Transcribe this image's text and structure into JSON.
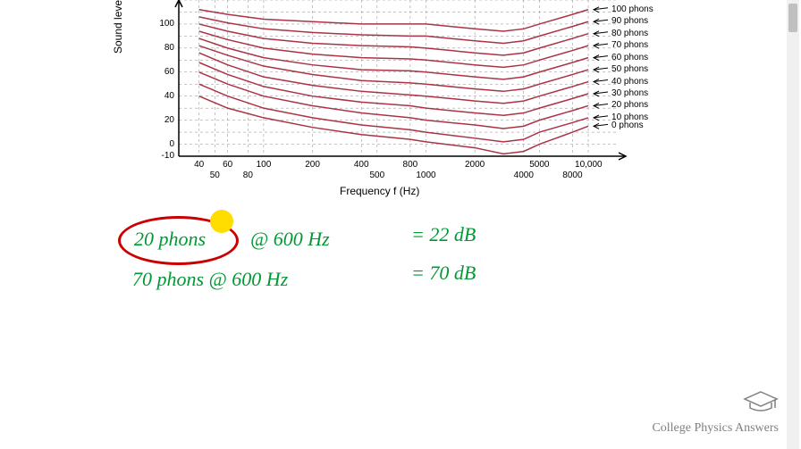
{
  "chart": {
    "type": "line",
    "ylabel": "Sound level (dB)",
    "xlabel": "Frequency f (Hz)",
    "y_ticks": [
      -10,
      0,
      20,
      40,
      60,
      80,
      100
    ],
    "y_range": [
      -10,
      120
    ],
    "x_ticks_top": [
      "40",
      "60",
      "100",
      "200",
      "400",
      "800",
      "2000",
      "5000",
      "10,000"
    ],
    "x_ticks_bottom": [
      "50",
      "80",
      "500",
      "1000",
      "4000",
      "8000"
    ],
    "x_range_log": [
      30,
      15000
    ],
    "curve_color": "#aa3344",
    "grid_color": "#888888",
    "axis_color": "#000000",
    "background_color": "#ffffff",
    "phon_labels": [
      {
        "text": "100 phons",
        "y_val": 100
      },
      {
        "text": "90 phons",
        "y_val": 90
      },
      {
        "text": "80 phons",
        "y_val": 80
      },
      {
        "text": "70 phons",
        "y_val": 70
      },
      {
        "text": "60 phons",
        "y_val": 60
      },
      {
        "text": "50 phons",
        "y_val": 50
      },
      {
        "text": "40 phons",
        "y_val": 40
      },
      {
        "text": "30 phons",
        "y_val": 30
      },
      {
        "text": "20 phons",
        "y_val": 20
      },
      {
        "text": "10 phons",
        "y_val": 10
      },
      {
        "text": "0 phons",
        "y_val": 0
      }
    ],
    "curves": [
      {
        "phon": 0,
        "points": [
          [
            40,
            40
          ],
          [
            60,
            30
          ],
          [
            100,
            22
          ],
          [
            200,
            14
          ],
          [
            400,
            8
          ],
          [
            800,
            4
          ],
          [
            1000,
            2
          ],
          [
            2000,
            -3
          ],
          [
            3000,
            -8
          ],
          [
            4000,
            -6
          ],
          [
            5000,
            0
          ],
          [
            8000,
            10
          ],
          [
            10000,
            15
          ]
        ]
      },
      {
        "phon": 10,
        "points": [
          [
            40,
            50
          ],
          [
            60,
            40
          ],
          [
            100,
            30
          ],
          [
            200,
            22
          ],
          [
            400,
            16
          ],
          [
            800,
            12
          ],
          [
            1000,
            10
          ],
          [
            2000,
            5
          ],
          [
            3000,
            2
          ],
          [
            4000,
            4
          ],
          [
            5000,
            10
          ],
          [
            8000,
            18
          ],
          [
            10000,
            22
          ]
        ]
      },
      {
        "phon": 20,
        "points": [
          [
            40,
            60
          ],
          [
            60,
            50
          ],
          [
            100,
            40
          ],
          [
            200,
            32
          ],
          [
            400,
            26
          ],
          [
            800,
            22
          ],
          [
            1000,
            20
          ],
          [
            2000,
            16
          ],
          [
            3000,
            13
          ],
          [
            4000,
            15
          ],
          [
            5000,
            20
          ],
          [
            8000,
            28
          ],
          [
            10000,
            32
          ]
        ]
      },
      {
        "phon": 30,
        "points": [
          [
            40,
            68
          ],
          [
            60,
            58
          ],
          [
            100,
            48
          ],
          [
            200,
            40
          ],
          [
            400,
            35
          ],
          [
            800,
            32
          ],
          [
            1000,
            30
          ],
          [
            2000,
            26
          ],
          [
            3000,
            24
          ],
          [
            4000,
            26
          ],
          [
            5000,
            30
          ],
          [
            8000,
            38
          ],
          [
            10000,
            42
          ]
        ]
      },
      {
        "phon": 40,
        "points": [
          [
            40,
            76
          ],
          [
            60,
            66
          ],
          [
            100,
            56
          ],
          [
            200,
            49
          ],
          [
            400,
            44
          ],
          [
            800,
            41
          ],
          [
            1000,
            40
          ],
          [
            2000,
            36
          ],
          [
            3000,
            34
          ],
          [
            4000,
            36
          ],
          [
            5000,
            40
          ],
          [
            8000,
            48
          ],
          [
            10000,
            52
          ]
        ]
      },
      {
        "phon": 50,
        "points": [
          [
            40,
            82
          ],
          [
            60,
            74
          ],
          [
            100,
            65
          ],
          [
            200,
            58
          ],
          [
            400,
            53
          ],
          [
            800,
            51
          ],
          [
            1000,
            50
          ],
          [
            2000,
            46
          ],
          [
            3000,
            44
          ],
          [
            4000,
            46
          ],
          [
            5000,
            50
          ],
          [
            8000,
            58
          ],
          [
            10000,
            62
          ]
        ]
      },
      {
        "phon": 60,
        "points": [
          [
            40,
            88
          ],
          [
            60,
            80
          ],
          [
            100,
            72
          ],
          [
            200,
            66
          ],
          [
            400,
            62
          ],
          [
            800,
            61
          ],
          [
            1000,
            60
          ],
          [
            2000,
            56
          ],
          [
            3000,
            54
          ],
          [
            4000,
            56
          ],
          [
            5000,
            60
          ],
          [
            8000,
            68
          ],
          [
            10000,
            72
          ]
        ]
      },
      {
        "phon": 70,
        "points": [
          [
            40,
            94
          ],
          [
            60,
            87
          ],
          [
            100,
            80
          ],
          [
            200,
            75
          ],
          [
            400,
            72
          ],
          [
            800,
            71
          ],
          [
            1000,
            70
          ],
          [
            2000,
            66
          ],
          [
            3000,
            64
          ],
          [
            4000,
            66
          ],
          [
            5000,
            70
          ],
          [
            8000,
            78
          ],
          [
            10000,
            82
          ]
        ]
      },
      {
        "phon": 80,
        "points": [
          [
            40,
            100
          ],
          [
            60,
            94
          ],
          [
            100,
            88
          ],
          [
            200,
            84
          ],
          [
            400,
            82
          ],
          [
            800,
            81
          ],
          [
            1000,
            80
          ],
          [
            2000,
            76
          ],
          [
            3000,
            74
          ],
          [
            4000,
            76
          ],
          [
            5000,
            80
          ],
          [
            8000,
            88
          ],
          [
            10000,
            92
          ]
        ]
      },
      {
        "phon": 90,
        "points": [
          [
            40,
            106
          ],
          [
            60,
            101
          ],
          [
            100,
            96
          ],
          [
            200,
            93
          ],
          [
            400,
            91
          ],
          [
            800,
            90
          ],
          [
            1000,
            90
          ],
          [
            2000,
            86
          ],
          [
            3000,
            84
          ],
          [
            4000,
            86
          ],
          [
            5000,
            90
          ],
          [
            8000,
            98
          ],
          [
            10000,
            102
          ]
        ]
      },
      {
        "phon": 100,
        "points": [
          [
            40,
            112
          ],
          [
            60,
            108
          ],
          [
            100,
            104
          ],
          [
            200,
            102
          ],
          [
            400,
            100
          ],
          [
            800,
            100
          ],
          [
            1000,
            100
          ],
          [
            2000,
            96
          ],
          [
            3000,
            94
          ],
          [
            4000,
            96
          ],
          [
            5000,
            100
          ],
          [
            8000,
            108
          ],
          [
            10000,
            112
          ]
        ]
      }
    ]
  },
  "annotations": {
    "line1_part1": "20 phons",
    "line1_part2": "@ 600 Hz",
    "line1_result": "= 22 dB",
    "line2_part1": "70 phons @ 600 Hz",
    "line2_result": "= 70 dB",
    "handwriting_color": "#009933",
    "circle_color": "#cc0000",
    "dot_color": "#ffdd00"
  },
  "branding": {
    "text": "College Physics Answers",
    "text_color": "#808080",
    "icon_color": "#808080"
  }
}
